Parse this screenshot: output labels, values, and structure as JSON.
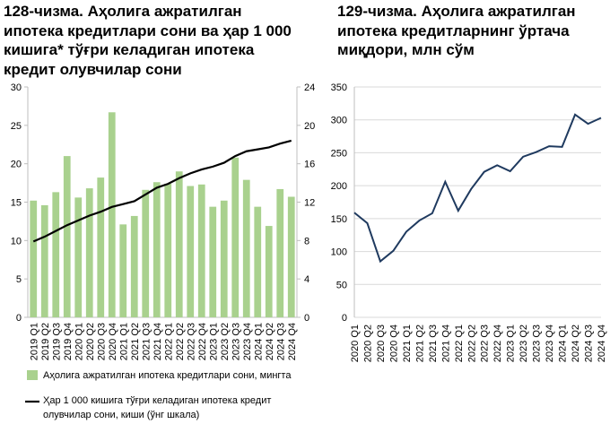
{
  "titles": {
    "left": "128-чизма. Аҳолига ажратилган\nипотека кредитлари сони ва ҳар 1 000\nкишига* тўғри келадиган ипотека\nкредит олувчилар сони",
    "right": "129-чизма. Аҳолига ажратилган\nипотека кредитларнинг ўртача\nмиқдори, млн сўм"
  },
  "chart_data": [
    {
      "type": "bar+line",
      "categories": [
        "2019 Q1",
        "2019 Q2",
        "2019 Q3",
        "2019 Q4",
        "2020 Q1",
        "2020 Q2",
        "2020 Q3",
        "2020 Q4",
        "2021 Q1",
        "2021 Q2",
        "2021 Q3",
        "2021 Q4",
        "2022 Q1",
        "2022 Q2",
        "2022 Q3",
        "2022 Q4",
        "2023 Q1",
        "2023 Q2",
        "2023 Q3",
        "2023 Q4",
        "2024 Q1",
        "2024 Q2",
        "2024 Q3",
        "2024 Q4"
      ],
      "ylim_left": [
        0,
        30
      ],
      "yticks_left": [
        0,
        5,
        10,
        15,
        20,
        25,
        30
      ],
      "ylim_right": [
        0,
        24
      ],
      "yticks_right": [
        0,
        4,
        8,
        12,
        16,
        20,
        24
      ],
      "series": [
        {
          "name": "Аҳолига ажратилган ипотека кредитлари сони, мингта",
          "kind": "bar",
          "axis": "left",
          "color": "#a9d18e",
          "values": [
            15.2,
            14.6,
            16.3,
            21.0,
            15.6,
            16.8,
            18.2,
            26.7,
            12.1,
            13.2,
            16.6,
            17.6,
            17.4,
            19.0,
            17.1,
            17.3,
            14.4,
            15.2,
            20.8,
            17.9,
            14.4,
            11.9,
            16.7,
            15.7
          ]
        },
        {
          "name": "Ҳар 1 000 кишига тўғри келадиган ипотека кредит олувчилар сони, киши (ўнг шкала)",
          "kind": "line",
          "axis": "right",
          "color": "#000000",
          "values": [
            7.9,
            8.4,
            9.0,
            9.6,
            10.1,
            10.6,
            11.0,
            11.5,
            11.8,
            12.1,
            12.8,
            13.5,
            13.9,
            14.5,
            15.0,
            15.4,
            15.7,
            16.1,
            16.8,
            17.3,
            17.5,
            17.7,
            18.1,
            18.4
          ]
        }
      ]
    },
    {
      "type": "line",
      "categories": [
        "2020 Q1",
        "2020 Q2",
        "2020 Q3",
        "2020 Q4",
        "2021 Q1",
        "2021 Q2",
        "2021 Q3",
        "2021 Q4",
        "2022 Q1",
        "2022 Q2",
        "2022 Q3",
        "2022 Q4",
        "2023 Q1",
        "2023 Q2",
        "2023 Q3",
        "2023 Q4",
        "2024 Q1",
        "2024 Q2",
        "2024 Q3",
        "2024 Q4"
      ],
      "ylim": [
        0,
        350
      ],
      "yticks": [
        0,
        50,
        100,
        150,
        200,
        250,
        300,
        350
      ],
      "grid": true,
      "series": [
        {
          "name": "",
          "color": "#1f3a5f",
          "values": [
            159,
            143,
            85,
            101,
            130,
            147,
            158,
            206,
            162,
            195,
            221,
            231,
            222,
            244,
            251,
            260,
            259,
            308,
            294,
            303
          ]
        }
      ]
    }
  ]
}
